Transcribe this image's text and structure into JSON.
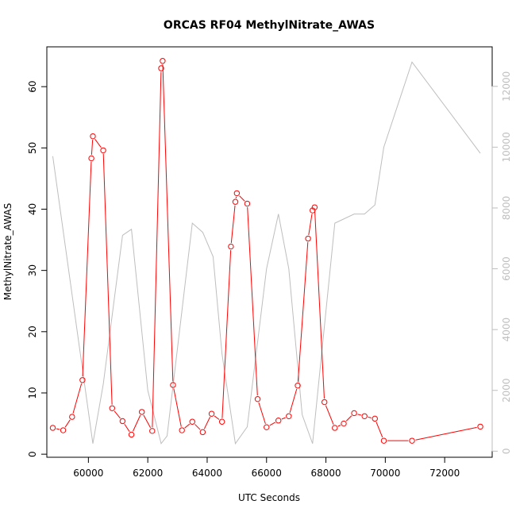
{
  "chart_data": {
    "type": "line",
    "title": "ORCAS RF04 MethylNitrate_AWAS",
    "xlabel": "UTC Seconds",
    "ylabel": "MethylNitrate_AWAS",
    "xlim": [
      58600,
      73600
    ],
    "ylim": [
      -0.5,
      66.5
    ],
    "y2lim": [
      -200,
      13300
    ],
    "x_ticks": [
      60000,
      62000,
      64000,
      66000,
      68000,
      70000,
      72000
    ],
    "y_ticks": [
      0,
      10,
      20,
      30,
      40,
      50,
      60
    ],
    "y2_ticks": [
      0,
      2000,
      4000,
      6000,
      8000,
      10000,
      12000
    ],
    "grid": false,
    "legend": "none",
    "series": [
      {
        "axis": "left",
        "color": "#ff0000",
        "marker": "open-circle",
        "x": [
          58800,
          59150,
          59450,
          59800,
          60100,
          60150,
          60500,
          60800,
          61150,
          61450,
          61800,
          62150,
          62450,
          62500,
          62850,
          63150,
          63500,
          63850,
          64150,
          64500,
          64800,
          64950,
          65000,
          65350,
          65700,
          66000,
          66400,
          66750,
          67050,
          67400,
          67550,
          67620,
          67950,
          68300,
          68600,
          68950,
          69300,
          69650,
          69950,
          70900,
          73200
        ],
        "y": [
          4.3,
          3.9,
          6.1,
          12.1,
          48.3,
          51.9,
          49.6,
          7.5,
          5.4,
          3.2,
          6.9,
          3.8,
          63.0,
          64.2,
          11.3,
          3.9,
          5.3,
          3.6,
          6.6,
          5.3,
          33.9,
          41.2,
          42.6,
          40.9,
          9.0,
          4.4,
          5.5,
          6.2,
          11.2,
          35.2,
          39.8,
          40.3,
          8.5,
          4.3,
          5.0,
          6.7,
          6.2,
          5.8,
          2.2,
          2.2,
          4.5
        ]
      },
      {
        "axis": "right",
        "color": "#bebebe",
        "marker": "none",
        "x": [
          58800,
          60150,
          60500,
          61150,
          61450,
          62000,
          62450,
          62650,
          63500,
          63850,
          64200,
          64500,
          64950,
          65350,
          66000,
          66400,
          66750,
          67200,
          67550,
          68300,
          68950,
          69300,
          69650,
          69950,
          70900,
          73200
        ],
        "y": [
          9700,
          250,
          2200,
          7100,
          7300,
          2000,
          250,
          500,
          7500,
          7200,
          6400,
          3200,
          250,
          800,
          6000,
          7800,
          6000,
          1200,
          250,
          7500,
          7800,
          7800,
          8100,
          10000,
          12800,
          9800
        ]
      }
    ]
  }
}
